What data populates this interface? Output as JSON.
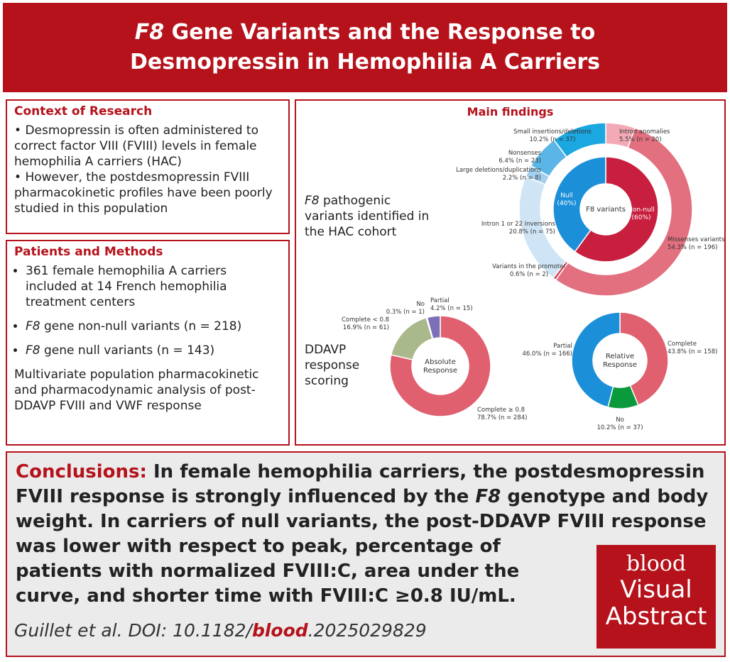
{
  "header": {
    "title_italic": "F8",
    "title": "Gene Variants and the Response to Desmopressin in Hemophilia A Carriers"
  },
  "context": {
    "heading": "Context of Research",
    "bullets": [
      "Desmopressin is often administered to correct factor VIII (FVIII) levels in female hemophilia A carriers (HAC)",
      "However, the postdesmopressin FVIII pharmacokinetic profiles have been poorly studied in this population"
    ]
  },
  "methods": {
    "heading": "Patients and Methods",
    "bullets": [
      {
        "text": "361 female hemophilia A carriers included at 14 French hemophilia treatment centers"
      },
      {
        "italic": "F8",
        "text": "gene non-null variants (n = 218)"
      },
      {
        "italic": "F8",
        "text": "gene null variants (n = 143)"
      }
    ],
    "paragraph": "Multivariate population pharmacokinetic and pharmacodynamic analysis of post-DDAVP FVIII and VWF response"
  },
  "findings": {
    "heading": "Main findings",
    "label_1": {
      "italic": "F8",
      "text": "pathogenic variants identified in the HAC cohort"
    },
    "label_2": "DDAVP response scoring"
  },
  "chart_data": [
    {
      "type": "pie",
      "title": "F8 variants",
      "categories": [
        "Intron anomalies",
        "Missenses variants",
        "Variants in the promoter",
        "Intron 1 or 22 inversions",
        "Large deletions/duplications",
        "Nonsenses",
        "Small insertions/deletions"
      ],
      "values": [
        5.5,
        54.3,
        0.6,
        20.8,
        2.2,
        6.4,
        10.2
      ],
      "value_labels": [
        "5.5% (n = 20)",
        "54.3% (n = 196)",
        "0.6% (n = 2)",
        "20.8% (n = 75)",
        "2.2% (n = 8)",
        "6.4% (n = 23)",
        "10.2% (n = 37)"
      ],
      "colors": [
        "#f4aab6",
        "#e2707f",
        "#d94a5c",
        "#cfe5f6",
        "#a3d0ef",
        "#5bb5e6",
        "#1ba7e0"
      ],
      "inner": {
        "categories": [
          "Non-null",
          "Null"
        ],
        "values": [
          60,
          40
        ],
        "value_labels": [
          "(60%)",
          "(40%)"
        ],
        "colors": [
          "#c81f3f",
          "#1b8fd8"
        ]
      }
    },
    {
      "type": "pie",
      "title": "Absolute Response",
      "categories": [
        "Complete ≥ 0.8",
        "Complete < 0.8",
        "No",
        "Partial"
      ],
      "values": [
        78.7,
        16.9,
        0.3,
        4.2
      ],
      "value_labels": [
        "78.7% (n = 284)",
        "16.9% (n = 61)",
        "0.3% (n = 1)",
        "4.2% (n = 15)"
      ],
      "colors": [
        "#e0606f",
        "#a9b98b",
        "#5a9a6a",
        "#7b70b8"
      ]
    },
    {
      "type": "pie",
      "title": "Relative Response",
      "categories": [
        "Complete",
        "No",
        "Partial"
      ],
      "values": [
        43.8,
        10.2,
        46.0
      ],
      "value_labels": [
        "43.8% (n = 158)",
        "10.2% (n = 37)",
        "46.0% (n = 166)"
      ],
      "colors": [
        "#e0606f",
        "#0a9a3c",
        "#1b8fd8"
      ]
    }
  ],
  "conclusions": {
    "heading": "Conclusions:",
    "text": [
      "In female hemophilia carriers, the postdesmopressin FVIII response is strongly influenced by the",
      "F8",
      "genotype and body weight. In carriers of null variants, the post-DDAVP FVIII response was lower with respect to peak, percentage of patients with normalized FVIII:C, area under the curve, and shorter time with FVIII:C ≥0.8 IU/mL."
    ]
  },
  "citation": {
    "prefix": "Guillet et al. DOI: 10.1182/",
    "journal": "blood",
    "suffix": ".2025029829"
  },
  "logo": {
    "brand": "blood",
    "line_1": "Visual",
    "line_2": "Abstract"
  }
}
